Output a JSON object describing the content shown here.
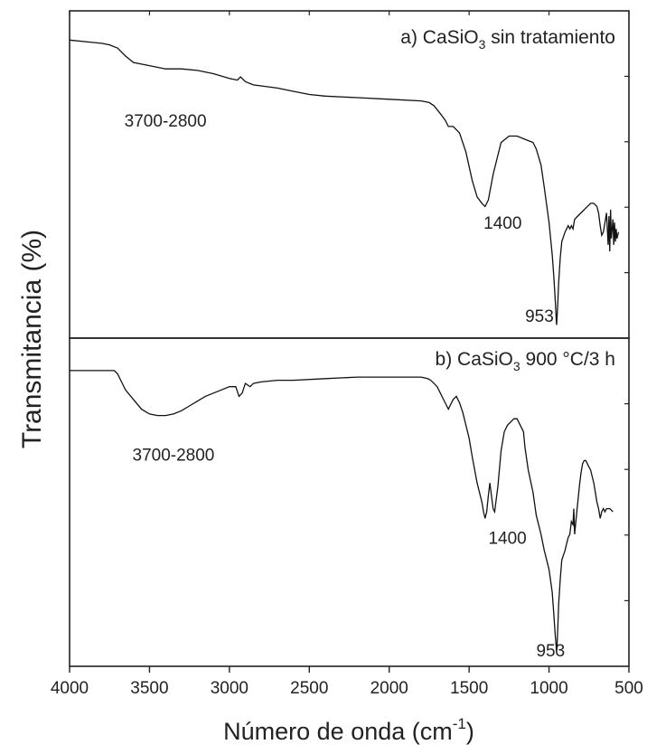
{
  "chart_data": {
    "type": "line",
    "ylabel": "Transmitancia (%)",
    "xlabel": {
      "main": "Número de onda (cm",
      "sup": "-1",
      "close": ")"
    },
    "xlim": [
      4000,
      500
    ],
    "xticks": [
      "4000",
      "3500",
      "3000",
      "2500",
      "2000",
      "1500",
      "1000",
      "500"
    ],
    "grid": false,
    "panels": [
      {
        "label": {
          "prefix": "a) CaSiO",
          "sub": "3",
          "suffix": " sin tratamiento"
        },
        "ylim": [
          0,
          100
        ],
        "series": [
          {
            "x": [
              4000,
              3900,
              3800,
              3750,
              3700,
              3650,
              3600,
              3500,
              3400,
              3300,
              3200,
              3100,
              3000,
              2950,
              2930,
              2900,
              2850,
              2700,
              2600,
              2500,
              2400,
              2200,
              2000,
              1800,
              1750,
              1720,
              1680,
              1650,
              1630,
              1600,
              1560,
              1520,
              1480,
              1450,
              1420,
              1400,
              1380,
              1350,
              1300,
              1250,
              1200,
              1150,
              1100,
              1080,
              1050,
              1030,
              1000,
              980,
              970,
              960,
              955,
              953,
              950,
              945,
              940,
              930,
              920,
              900,
              880,
              870,
              860,
              850,
              840,
              820,
              800,
              780,
              760,
              740,
              720,
              700,
              690,
              680,
              670,
              660,
              650,
              640,
              630,
              625,
              620,
              615,
              610,
              600,
              595,
              590,
              585,
              580,
              575,
              570,
              565
            ],
            "y": [
              92,
              91.5,
              91,
              90.5,
              89.5,
              87,
              85,
              84,
              83,
              83,
              82.5,
              81.5,
              80,
              79.5,
              80.5,
              79,
              78,
              77,
              76,
              75,
              74.5,
              74,
              73.5,
              73,
              72.5,
              71.5,
              69,
              67,
              65,
              65,
              63,
              57,
              48,
              43,
              41,
              40,
              42,
              50,
              60,
              62,
              62,
              61,
              60,
              58,
              53,
              46,
              35,
              25,
              18,
              10,
              5,
              3,
              5,
              10,
              16,
              24,
              29,
              32,
              34,
              33,
              34,
              33,
              36,
              37,
              38,
              39,
              40,
              41,
              41,
              40,
              38,
              34,
              31,
              32,
              35,
              38,
              28,
              37,
              26,
              39,
              30,
              36,
              28,
              35,
              29,
              33,
              30,
              31,
              32
            ]
          }
        ],
        "annotations": [
          {
            "text": "3700-2800",
            "x": 3400,
            "y": 65
          },
          {
            "text": "1400",
            "x": 1290,
            "y": 33
          },
          {
            "text": "953",
            "x": 1060,
            "y": 4
          }
        ]
      },
      {
        "label": {
          "prefix": "b) CaSiO",
          "sub": "3",
          "suffix": " 900 °C/3 h"
        },
        "ylim": [
          0,
          100
        ],
        "series": [
          {
            "x": [
              4000,
              3800,
              3720,
              3700,
              3680,
              3650,
              3600,
              3550,
              3500,
              3450,
              3400,
              3350,
              3300,
              3250,
              3200,
              3150,
              3100,
              3050,
              3000,
              2960,
              2940,
              2920,
              2900,
              2870,
              2850,
              2800,
              2700,
              2600,
              2400,
              2200,
              2000,
              1800,
              1760,
              1740,
              1720,
              1700,
              1680,
              1660,
              1640,
              1630,
              1620,
              1600,
              1580,
              1560,
              1540,
              1500,
              1480,
              1450,
              1420,
              1410,
              1400,
              1390,
              1380,
              1370,
              1360,
              1350,
              1340,
              1320,
              1300,
              1280,
              1260,
              1240,
              1220,
              1200,
              1180,
              1160,
              1150,
              1130,
              1100,
              1080,
              1050,
              1030,
              1000,
              980,
              970,
              960,
              955,
              953,
              950,
              945,
              940,
              930,
              920,
              900,
              890,
              880,
              870,
              860,
              850,
              845,
              840,
              830,
              820,
              810,
              800,
              790,
              780,
              770,
              760,
              750,
              740,
              720,
              700,
              690,
              680,
              670,
              660,
              650,
              640,
              620,
              600
            ],
            "y": [
              91,
              91,
              91,
              90,
              88,
              85,
              82,
              79,
              77.5,
              77,
              77,
              77.5,
              78.5,
              80,
              81.5,
              83,
              84,
              85,
              86,
              86,
              83,
              84,
              87,
              86,
              87,
              87.5,
              88,
              88,
              88.5,
              89,
              89,
              89,
              88.5,
              88,
              87,
              86,
              84,
              82,
              80,
              79,
              80,
              82,
              83,
              81,
              78,
              70,
              64,
              56,
              50,
              47,
              45,
              47,
              52,
              56,
              52,
              48,
              47,
              55,
              66,
              72,
              74,
              75,
              76,
              76,
              74,
              72,
              67,
              60,
              53,
              46,
              40,
              35,
              29,
              22,
              15,
              8,
              5,
              3,
              5,
              11,
              18,
              26,
              32,
              35,
              37,
              39,
              40,
              44,
              43,
              48,
              40,
              45,
              50,
              55,
              59,
              62,
              63,
              63,
              62,
              61,
              60,
              56,
              50,
              48,
              45,
              47,
              48,
              47,
              48,
              48,
              47
            ]
          }
        ],
        "annotations": [
          {
            "text": "3700-2800",
            "x": 3350,
            "y": 63
          },
          {
            "text": "1400",
            "x": 1260,
            "y": 37
          },
          {
            "text": "953",
            "x": 990,
            "y": 2
          }
        ]
      }
    ]
  }
}
